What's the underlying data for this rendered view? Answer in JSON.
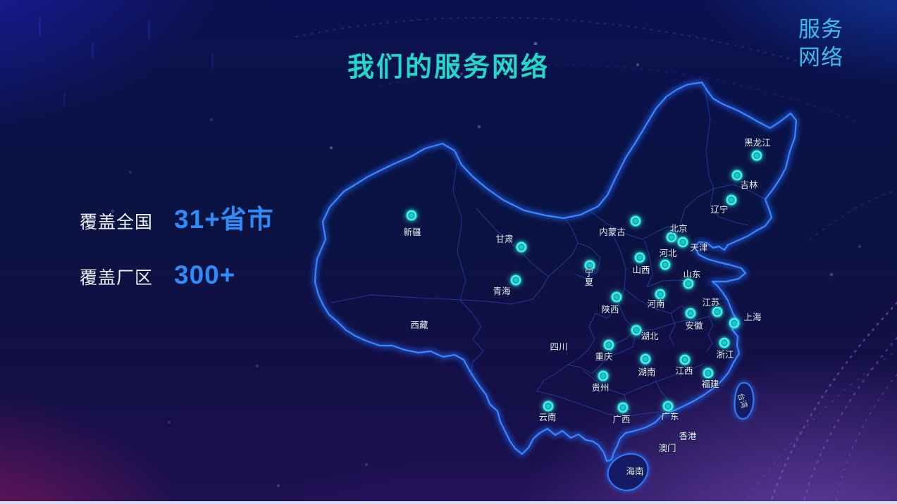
{
  "slide": {
    "title": "我们的服务网络",
    "corner_tag": {
      "line1": "服务",
      "line2": "网络"
    },
    "stats": [
      {
        "label": "覆盖全国",
        "value": "31+省市"
      },
      {
        "label": "覆盖厂区",
        "value": "300+"
      }
    ]
  },
  "colors": {
    "title_teal": "#23d6d0",
    "corner_cyan": "#38bdf0",
    "stat_blue": "#2f8bf8",
    "label_white": "#e6edf8",
    "dot_cyan": "#3ef2e6",
    "map_stroke": "#3b86ff",
    "province_line": "#2a5dd8",
    "bottom_strip": "#d9def0"
  },
  "map": {
    "provinces": [
      {
        "id": "xinjiang",
        "name": "新疆",
        "dot": [
          584,
          306
        ],
        "label": [
          585,
          330
        ]
      },
      {
        "id": "heilongjiang",
        "name": "黑龙江",
        "dot": [
          1074,
          221
        ],
        "label": [
          1075,
          203
        ]
      },
      {
        "id": "jilin",
        "name": "吉林",
        "dot": [
          1046,
          249
        ],
        "label": [
          1063,
          263
        ]
      },
      {
        "id": "liaoning",
        "name": "辽宁",
        "dot": [
          1038,
          284
        ],
        "label": [
          1021,
          298
        ]
      },
      {
        "id": "neimenggu",
        "name": "内蒙古",
        "dot": [
          902,
          314
        ],
        "label": [
          869,
          330
        ]
      },
      {
        "id": "beijing",
        "name": "北京",
        "dot": [
          953,
          337
        ],
        "label": [
          963,
          325
        ]
      },
      {
        "id": "tianjin",
        "name": "天津",
        "dot": [
          969,
          344
        ],
        "label": [
          992,
          352
        ]
      },
      {
        "id": "gansu",
        "name": "甘肃",
        "dot": [
          740,
          351
        ],
        "label": [
          716,
          340
        ]
      },
      {
        "id": "shanxi",
        "name": "山西",
        "dot": [
          908,
          366
        ],
        "label": [
          910,
          384
        ]
      },
      {
        "id": "hebei",
        "name": "河北",
        "dot": [
          944,
          376
        ],
        "label": [
          948,
          360
        ]
      },
      {
        "id": "ningxia",
        "name": "宁夏",
        "dot": [
          837,
          377
        ],
        "label": [
          836,
          388
        ],
        "lines": [
          "宁",
          "夏"
        ]
      },
      {
        "id": "qinghai",
        "name": "青海",
        "dot": [
          732,
          398
        ],
        "label": [
          712,
          414
        ]
      },
      {
        "id": "shandong",
        "name": "山东",
        "dot": [
          977,
          403
        ],
        "label": [
          982,
          390
        ]
      },
      {
        "id": "shaanxi",
        "name": "陕西",
        "dot": [
          875,
          422
        ],
        "label": [
          866,
          440
        ]
      },
      {
        "id": "henan",
        "name": "河南",
        "dot": [
          937,
          418
        ],
        "label": [
          931,
          432
        ]
      },
      {
        "id": "jiangsu",
        "name": "江苏",
        "dot": [
          1018,
          443
        ],
        "label": [
          1009,
          430
        ]
      },
      {
        "id": "anhui",
        "name": "安徽",
        "dot": [
          980,
          445
        ],
        "label": [
          985,
          463
        ]
      },
      {
        "id": "shanghai",
        "name": "上海",
        "dot": [
          1042,
          459
        ],
        "label": [
          1068,
          451
        ]
      },
      {
        "id": "hubei",
        "name": "湖北",
        "dot": [
          903,
          469
        ],
        "label": [
          922,
          478
        ]
      },
      {
        "id": "chongqing",
        "name": "重庆",
        "dot": [
          864,
          490
        ],
        "label": [
          857,
          507
        ]
      },
      {
        "id": "zhejiang",
        "name": "浙江",
        "dot": [
          1028,
          487
        ],
        "label": [
          1029,
          504
        ]
      },
      {
        "id": "hunan",
        "name": "湖南",
        "dot": [
          916,
          510
        ],
        "label": [
          918,
          529
        ]
      },
      {
        "id": "jiangxi",
        "name": "江西",
        "dot": [
          972,
          511
        ],
        "label": [
          971,
          527
        ]
      },
      {
        "id": "fujian",
        "name": "福建",
        "dot": [
          1005,
          530
        ],
        "label": [
          1008,
          546
        ]
      },
      {
        "id": "guizhou",
        "name": "贵州",
        "dot": [
          856,
          534
        ],
        "label": [
          852,
          551
        ]
      },
      {
        "id": "yunnan",
        "name": "云南",
        "dot": [
          778,
          577
        ],
        "label": [
          777,
          593
        ]
      },
      {
        "id": "guangxi",
        "name": "广西",
        "dot": [
          884,
          579
        ],
        "label": [
          882,
          596
        ]
      },
      {
        "id": "guangdong",
        "name": "广东",
        "dot": [
          948,
          577
        ],
        "label": [
          951,
          592
        ]
      },
      {
        "id": "xizang",
        "name": "西藏",
        "label": [
          595,
          462
        ]
      },
      {
        "id": "sichuan",
        "name": "四川",
        "label": [
          793,
          493
        ]
      },
      {
        "id": "hongkong",
        "name": "香港",
        "label": [
          976,
          620
        ]
      },
      {
        "id": "macau",
        "name": "澳门",
        "label": [
          947,
          637
        ]
      },
      {
        "id": "hainan",
        "name": "海南",
        "label": [
          901,
          670
        ]
      },
      {
        "id": "taiwan",
        "name": "台湾",
        "label": [
          1054,
          569
        ],
        "rotate": 72
      }
    ]
  }
}
